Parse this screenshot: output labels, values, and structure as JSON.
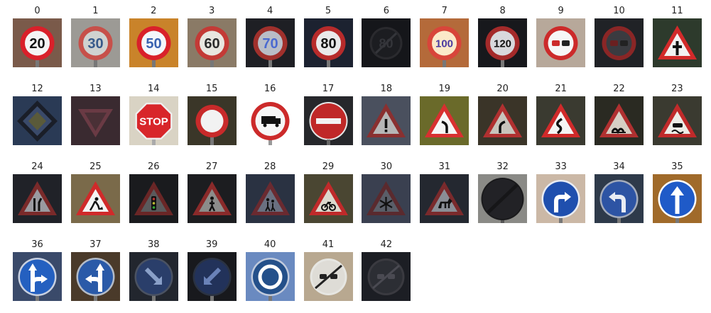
{
  "grid": {
    "items": [
      {
        "label": "0",
        "kind": "speed",
        "text": "20",
        "bg": "#7a5a4a",
        "ring": "#d9202a",
        "face": "#f4f4f4",
        "ink": "#111"
      },
      {
        "label": "1",
        "kind": "speed",
        "text": "30",
        "bg": "#9c9a95",
        "ring": "#c7504a",
        "face": "#cfd2d0",
        "ink": "#375a8a"
      },
      {
        "label": "2",
        "kind": "speed",
        "text": "50",
        "bg": "#c9832a",
        "ring": "#d9202a",
        "face": "#f4f6fb",
        "ink": "#3a62b0"
      },
      {
        "label": "3",
        "kind": "speed",
        "text": "60",
        "bg": "#8a7a66",
        "ring": "#c33a36",
        "face": "#e8e6e0",
        "ink": "#2c2c2c"
      },
      {
        "label": "4",
        "kind": "speed",
        "text": "70",
        "bg": "#1e1f24",
        "ring": "#a0302c",
        "face": "#b9bdc6",
        "ink": "#4b6ad0"
      },
      {
        "label": "5",
        "kind": "speed",
        "text": "80",
        "bg": "#1c2230",
        "ring": "#b72b2b",
        "face": "#e9e9ea",
        "ink": "#111"
      },
      {
        "label": "6",
        "kind": "endlimit",
        "text": "80",
        "bg": "#15161a",
        "ring": "#2a2a2e",
        "face": "#1c1d21",
        "ink": "#34353a"
      },
      {
        "label": "7",
        "kind": "speed",
        "text": "100",
        "bg": "#b46a3a",
        "ring": "#d8453a",
        "face": "#fbe9c9",
        "ink": "#4a3aa0"
      },
      {
        "label": "8",
        "kind": "speed",
        "text": "120",
        "bg": "#17181c",
        "ring": "#a42a2a",
        "face": "#d8d8dc",
        "ink": "#111"
      },
      {
        "label": "9",
        "kind": "nopass",
        "text": "",
        "bg": "#b7a89a",
        "ring": "#cc2a2a",
        "face": "#f6f6f6",
        "ink": "#cc2a2a"
      },
      {
        "label": "10",
        "kind": "nopass",
        "text": "",
        "bg": "#202226",
        "ring": "#8a2626",
        "face": "#3a3b40",
        "ink": "#6a2020"
      },
      {
        "label": "11",
        "kind": "triangle",
        "sym": "cross",
        "bg": "#2d3a2c",
        "ring": "#d22a2a",
        "face": "#f2f2f2",
        "ink": "#111"
      },
      {
        "label": "12",
        "kind": "priority",
        "bg": "#2a3a55",
        "ring": "#1a1e28",
        "face": "#3a4a6a",
        "ink": "#5a5a3a"
      },
      {
        "label": "13",
        "kind": "yield",
        "bg": "#3a2a30",
        "ring": "#6a3a44",
        "face": "#4a3036",
        "ink": "#4a3036"
      },
      {
        "label": "14",
        "kind": "stop",
        "text": "STOP",
        "bg": "#d9d3c4",
        "ring": "#f0f0f0",
        "face": "#d8262a",
        "ink": "#ffffff"
      },
      {
        "label": "15",
        "kind": "noveh",
        "bg": "#3a3628",
        "ring": "#c82a2a",
        "face": "#f2f2f2",
        "ink": "#c82a2a"
      },
      {
        "label": "16",
        "kind": "notruck",
        "bg": "#ffffff",
        "ring": "#cc2a2a",
        "face": "#f6f6f6",
        "ink": "#111"
      },
      {
        "label": "17",
        "kind": "noentry",
        "bg": "#26272b",
        "ring": "#c02828",
        "face": "#c02828",
        "ink": "#f2f2f2"
      },
      {
        "label": "18",
        "kind": "triangle",
        "sym": "excl",
        "bg": "#4a505e",
        "ring": "#8a3030",
        "face": "#b6b6b6",
        "ink": "#111"
      },
      {
        "label": "19",
        "kind": "triangle",
        "sym": "curveL",
        "bg": "#6a6a2a",
        "ring": "#d83030",
        "face": "#f6f6f6",
        "ink": "#111"
      },
      {
        "label": "20",
        "kind": "triangle",
        "sym": "curveR",
        "bg": "#3a3428",
        "ring": "#b03030",
        "face": "#c8c4bc",
        "ink": "#111"
      },
      {
        "label": "21",
        "kind": "triangle",
        "sym": "double",
        "bg": "#3a3a30",
        "ring": "#d02a2a",
        "face": "#f4f4f4",
        "ink": "#111"
      },
      {
        "label": "22",
        "kind": "triangle",
        "sym": "bumpy",
        "bg": "#2a2a22",
        "ring": "#b03030",
        "face": "#d6cfc4",
        "ink": "#111"
      },
      {
        "label": "23",
        "kind": "triangle",
        "sym": "slippery",
        "bg": "#3a3a30",
        "ring": "#c02a2a",
        "face": "#ecece6",
        "ink": "#111"
      },
      {
        "label": "24",
        "kind": "triangle",
        "sym": "narrow",
        "bg": "#202228",
        "ring": "#7a2a2a",
        "face": "#9a9aa0",
        "ink": "#111"
      },
      {
        "label": "25",
        "kind": "triangle",
        "sym": "work",
        "bg": "#7a6a4a",
        "ring": "#d02a2a",
        "face": "#f4f4f4",
        "ink": "#111"
      },
      {
        "label": "26",
        "kind": "triangle",
        "sym": "lights",
        "bg": "#1a1b1e",
        "ring": "#6a2626",
        "face": "#5a5a5c",
        "ink": "#111"
      },
      {
        "label": "27",
        "kind": "triangle",
        "sym": "ped",
        "bg": "#1c1d20",
        "ring": "#8a2a2a",
        "face": "#8c8c8a",
        "ink": "#111"
      },
      {
        "label": "28",
        "kind": "triangle",
        "sym": "child",
        "bg": "#2a3242",
        "ring": "#6a2a30",
        "face": "#6a7080",
        "ink": "#111"
      },
      {
        "label": "29",
        "kind": "triangle",
        "sym": "bike",
        "bg": "#4a4632",
        "ring": "#c02a2a",
        "face": "#dcd8cc",
        "ink": "#111"
      },
      {
        "label": "30",
        "kind": "triangle",
        "sym": "snow",
        "bg": "#3a4050",
        "ring": "#5a2a2e",
        "face": "#5a5e68",
        "ink": "#111"
      },
      {
        "label": "31",
        "kind": "triangle",
        "sym": "deer",
        "bg": "#242830",
        "ring": "#7a2a2c",
        "face": "#8a8e96",
        "ink": "#111"
      },
      {
        "label": "32",
        "kind": "endall",
        "bg": "#8a8a86",
        "ring": "#1a1a1c",
        "face": "#222226",
        "ink": "#111"
      },
      {
        "label": "33",
        "kind": "blue",
        "sym": "right",
        "bg": "#cbb8a6",
        "ring": "#e8ecf4",
        "face": "#1f4fae",
        "ink": "#ffffff"
      },
      {
        "label": "34",
        "kind": "blue",
        "sym": "left",
        "bg": "#2e3a4a",
        "ring": "#a4acbc",
        "face": "#2d54a4",
        "ink": "#e8ecf4"
      },
      {
        "label": "35",
        "kind": "blue",
        "sym": "up",
        "bg": "#a06a2a",
        "ring": "#ffffff",
        "face": "#1f5ac8",
        "ink": "#ffffff"
      },
      {
        "label": "36",
        "kind": "blue",
        "sym": "upright",
        "bg": "#3a4a6a",
        "ring": "#c8d0e0",
        "face": "#2460c0",
        "ink": "#ffffff"
      },
      {
        "label": "37",
        "kind": "blue",
        "sym": "upleft",
        "bg": "#4a3a2a",
        "ring": "#b4bcc8",
        "face": "#2a5aa8",
        "ink": "#ffffff"
      },
      {
        "label": "38",
        "kind": "blue",
        "sym": "keepright",
        "bg": "#22262e",
        "ring": "#4a5262",
        "face": "#2a3e6a",
        "ink": "#8aa0c8"
      },
      {
        "label": "39",
        "kind": "blue",
        "sym": "keepleft",
        "bg": "#18191d",
        "ring": "#2a3242",
        "face": "#22325a",
        "ink": "#6a82b8"
      },
      {
        "label": "40",
        "kind": "blue",
        "sym": "round",
        "bg": "#6a8ac0",
        "ring": "#c0cadc",
        "face": "#24508a",
        "ink": "#ffffff"
      },
      {
        "label": "41",
        "kind": "endnopass",
        "bg": "#b8a890",
        "ring": "#e6e6e2",
        "face": "#dedcd6",
        "ink": "#222"
      },
      {
        "label": "42",
        "kind": "endnopass",
        "bg": "#1c1e24",
        "ring": "#3a3a40",
        "face": "#2c2e34",
        "ink": "#4a4a52"
      }
    ]
  }
}
